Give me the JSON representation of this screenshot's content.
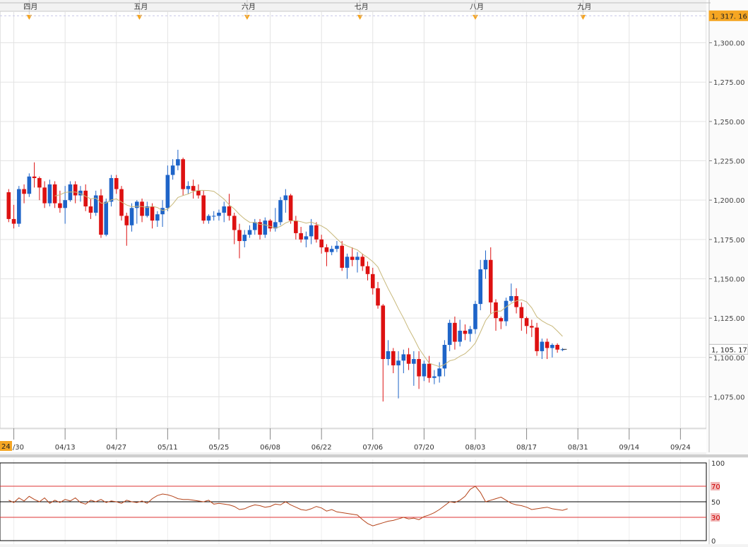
{
  "chart_data": [
    {
      "type": "candlestick",
      "title": "",
      "y_range": [
        1055,
        1320
      ],
      "y_ticks": [
        "1,075.00",
        "1,100.00",
        "1,125.00",
        "1,150.00",
        "1,175.00",
        "1,200.00",
        "1,225.00",
        "1,250.00",
        "1,275.00",
        "1,300.00"
      ],
      "y_tick_values": [
        1075,
        1100,
        1125,
        1150,
        1175,
        1200,
        1225,
        1250,
        1275,
        1300
      ],
      "x_date_labels": [
        "03/30",
        "04/13",
        "04/27",
        "05/11",
        "05/25",
        "06/08",
        "06/22",
        "07/06",
        "07/20",
        "08/03",
        "08/17",
        "08/31",
        "09/14",
        "09/24"
      ],
      "x_date_label_bars": [
        1,
        11,
        21,
        31,
        41,
        51,
        61,
        71,
        81,
        91,
        101,
        111,
        121,
        131
      ],
      "x_left_label": "24",
      "month_labels": [
        "四月",
        "五月",
        "六月",
        "七月",
        "八月",
        "九月"
      ],
      "month_label_bars": [
        4,
        25.5,
        46.5,
        68.5,
        91,
        112
      ],
      "price_flags": [
        {
          "label": "1, 317. 16",
          "value": 1317.16
        },
        {
          "label": "1, 105. 17",
          "value": 1105.17
        }
      ],
      "ma_period": 10,
      "ma_color": "#c8b87a",
      "up_color": "#1e64c8",
      "down_color": "#dd1111",
      "candles": [
        [
          1205,
          1207,
          1186,
          1188
        ],
        [
          1188,
          1197,
          1182,
          1185
        ],
        [
          1185,
          1209,
          1183,
          1207
        ],
        [
          1207,
          1210,
          1198,
          1204
        ],
        [
          1204,
          1217,
          1202,
          1215
        ],
        [
          1215,
          1224,
          1208,
          1214
        ],
        [
          1214,
          1215,
          1200,
          1208
        ],
        [
          1208,
          1212,
          1195,
          1198
        ],
        [
          1198,
          1213,
          1196,
          1210
        ],
        [
          1210,
          1212,
          1195,
          1198
        ],
        [
          1198,
          1206,
          1192,
          1195
        ],
        [
          1195,
          1209,
          1185,
          1200
        ],
        [
          1200,
          1212,
          1199,
          1210
        ],
        [
          1210,
          1212,
          1198,
          1203
        ],
        [
          1203,
          1209,
          1199,
          1206
        ],
        [
          1206,
          1210,
          1193,
          1196
        ],
        [
          1196,
          1201,
          1188,
          1192
        ],
        [
          1192,
          1206,
          1190,
          1203
        ],
        [
          1203,
          1207,
          1176,
          1178
        ],
        [
          1178,
          1201,
          1177,
          1199
        ],
        [
          1199,
          1216,
          1196,
          1214
        ],
        [
          1214,
          1216,
          1204,
          1207
        ],
        [
          1207,
          1209,
          1187,
          1190
        ],
        [
          1190,
          1192,
          1171,
          1184
        ],
        [
          1184,
          1198,
          1180,
          1195
        ],
        [
          1195,
          1200,
          1185,
          1199
        ],
        [
          1199,
          1201,
          1186,
          1190
        ],
        [
          1190,
          1199,
          1189,
          1196
        ],
        [
          1196,
          1198,
          1182,
          1187
        ],
        [
          1187,
          1193,
          1183,
          1191
        ],
        [
          1191,
          1200,
          1183,
          1195
        ],
        [
          1195,
          1222,
          1193,
          1216
        ],
        [
          1216,
          1226,
          1213,
          1222
        ],
        [
          1222,
          1232,
          1219,
          1226
        ],
        [
          1226,
          1227,
          1203,
          1207
        ],
        [
          1207,
          1212,
          1204,
          1209
        ],
        [
          1209,
          1213,
          1201,
          1206
        ],
        [
          1206,
          1210,
          1201,
          1203
        ],
        [
          1203,
          1206,
          1185,
          1187
        ],
        [
          1187,
          1191,
          1185,
          1190
        ],
        [
          1190,
          1193,
          1187,
          1190
        ],
        [
          1190,
          1194,
          1187,
          1192
        ],
        [
          1192,
          1199,
          1186,
          1196
        ],
        [
          1196,
          1204,
          1187,
          1190
        ],
        [
          1190,
          1192,
          1172,
          1181
        ],
        [
          1181,
          1185,
          1163,
          1174
        ],
        [
          1174,
          1181,
          1170,
          1178
        ],
        [
          1178,
          1184,
          1176,
          1181
        ],
        [
          1181,
          1188,
          1178,
          1186
        ],
        [
          1186,
          1188,
          1175,
          1178
        ],
        [
          1178,
          1189,
          1176,
          1187
        ],
        [
          1187,
          1188,
          1180,
          1182
        ],
        [
          1182,
          1195,
          1180,
          1186
        ],
        [
          1186,
          1202,
          1184,
          1200
        ],
        [
          1200,
          1207,
          1192,
          1203
        ],
        [
          1203,
          1204,
          1185,
          1187
        ],
        [
          1187,
          1190,
          1175,
          1179
        ],
        [
          1179,
          1183,
          1173,
          1175
        ],
        [
          1175,
          1180,
          1170,
          1177
        ],
        [
          1177,
          1188,
          1172,
          1184
        ],
        [
          1184,
          1186,
          1173,
          1175
        ],
        [
          1175,
          1178,
          1166,
          1170
        ],
        [
          1170,
          1172,
          1158,
          1167
        ],
        [
          1167,
          1171,
          1165,
          1169
        ],
        [
          1169,
          1174,
          1167,
          1171
        ],
        [
          1171,
          1174,
          1155,
          1157
        ],
        [
          1157,
          1166,
          1150,
          1164
        ],
        [
          1164,
          1170,
          1158,
          1162
        ],
        [
          1162,
          1167,
          1154,
          1164
        ],
        [
          1164,
          1166,
          1155,
          1158
        ],
        [
          1158,
          1161,
          1149,
          1153
        ],
        [
          1153,
          1157,
          1140,
          1144
        ],
        [
          1144,
          1148,
          1131,
          1133
        ],
        [
          1133,
          1134,
          1072,
          1099
        ],
        [
          1099,
          1111,
          1095,
          1104
        ],
        [
          1104,
          1106,
          1090,
          1095
        ],
        [
          1095,
          1104,
          1074,
          1098
        ],
        [
          1098,
          1105,
          1090,
          1102
        ],
        [
          1102,
          1106,
          1092,
          1096
        ],
        [
          1096,
          1104,
          1082,
          1099
        ],
        [
          1099,
          1104,
          1080,
          1088
        ],
        [
          1088,
          1098,
          1085,
          1096
        ],
        [
          1096,
          1101,
          1084,
          1087
        ],
        [
          1087,
          1092,
          1083,
          1088
        ],
        [
          1088,
          1097,
          1084,
          1093
        ],
        [
          1093,
          1111,
          1088,
          1108
        ],
        [
          1108,
          1124,
          1104,
          1122
        ],
        [
          1122,
          1126,
          1105,
          1110
        ],
        [
          1110,
          1124,
          1107,
          1117
        ],
        [
          1117,
          1121,
          1111,
          1115
        ],
        [
          1115,
          1120,
          1110,
          1118
        ],
        [
          1118,
          1136,
          1115,
          1134
        ],
        [
          1134,
          1162,
          1130,
          1156
        ],
        [
          1156,
          1168,
          1150,
          1162
        ],
        [
          1162,
          1170,
          1128,
          1135
        ],
        [
          1135,
          1137,
          1117,
          1125
        ],
        [
          1125,
          1126,
          1118,
          1123
        ],
        [
          1123,
          1138,
          1120,
          1136
        ],
        [
          1136,
          1147,
          1135,
          1139
        ],
        [
          1139,
          1144,
          1128,
          1132
        ],
        [
          1132,
          1135,
          1117,
          1125
        ],
        [
          1125,
          1126,
          1115,
          1120
        ],
        [
          1120,
          1124,
          1113,
          1119
        ],
        [
          1119,
          1122,
          1101,
          1104
        ],
        [
          1104,
          1112,
          1099,
          1110
        ],
        [
          1110,
          1112,
          1099,
          1106
        ],
        [
          1106,
          1109,
          1100,
          1108
        ],
        [
          1108,
          1109,
          1103,
          1105
        ],
        [
          1105,
          1106,
          1104,
          1105.17
        ]
      ],
      "candle_start_bar": 0
    },
    {
      "type": "line",
      "title": "",
      "y_range": [
        0,
        100
      ],
      "y_ticks": [
        "100",
        "70",
        "50",
        "30",
        "0"
      ],
      "y_tick_values": [
        100,
        70,
        50,
        30,
        0
      ],
      "levels": [
        {
          "value": 70,
          "color": "#dd3333"
        },
        {
          "value": 50,
          "color": "#000000"
        },
        {
          "value": 30,
          "color": "#dd3333"
        }
      ],
      "line_color": "#b5441a",
      "series": [
        {
          "values": [
            52,
            49,
            55,
            51,
            57,
            53,
            50,
            55,
            48,
            52,
            49,
            53,
            51,
            55,
            49,
            47,
            52,
            50,
            53,
            49,
            51,
            50,
            48,
            52,
            50,
            49,
            51,
            48,
            54,
            58,
            60,
            59,
            57,
            54,
            53,
            53,
            52,
            51,
            50,
            52,
            47,
            48,
            47,
            46,
            44,
            40,
            41,
            44,
            46,
            45,
            43,
            44,
            47,
            46,
            50,
            46,
            43,
            40,
            39,
            41,
            44,
            42,
            38,
            40,
            37,
            36,
            35,
            34,
            33,
            27,
            22,
            19,
            21,
            23,
            25,
            26,
            28,
            30,
            28,
            29,
            27,
            31,
            33,
            36,
            40,
            45,
            50,
            49,
            52,
            57,
            66,
            70,
            62,
            50,
            52,
            54,
            56,
            52,
            48,
            46,
            45,
            43,
            40,
            41,
            42,
            43,
            41,
            40,
            39,
            41
          ]
        }
      ]
    }
  ]
}
